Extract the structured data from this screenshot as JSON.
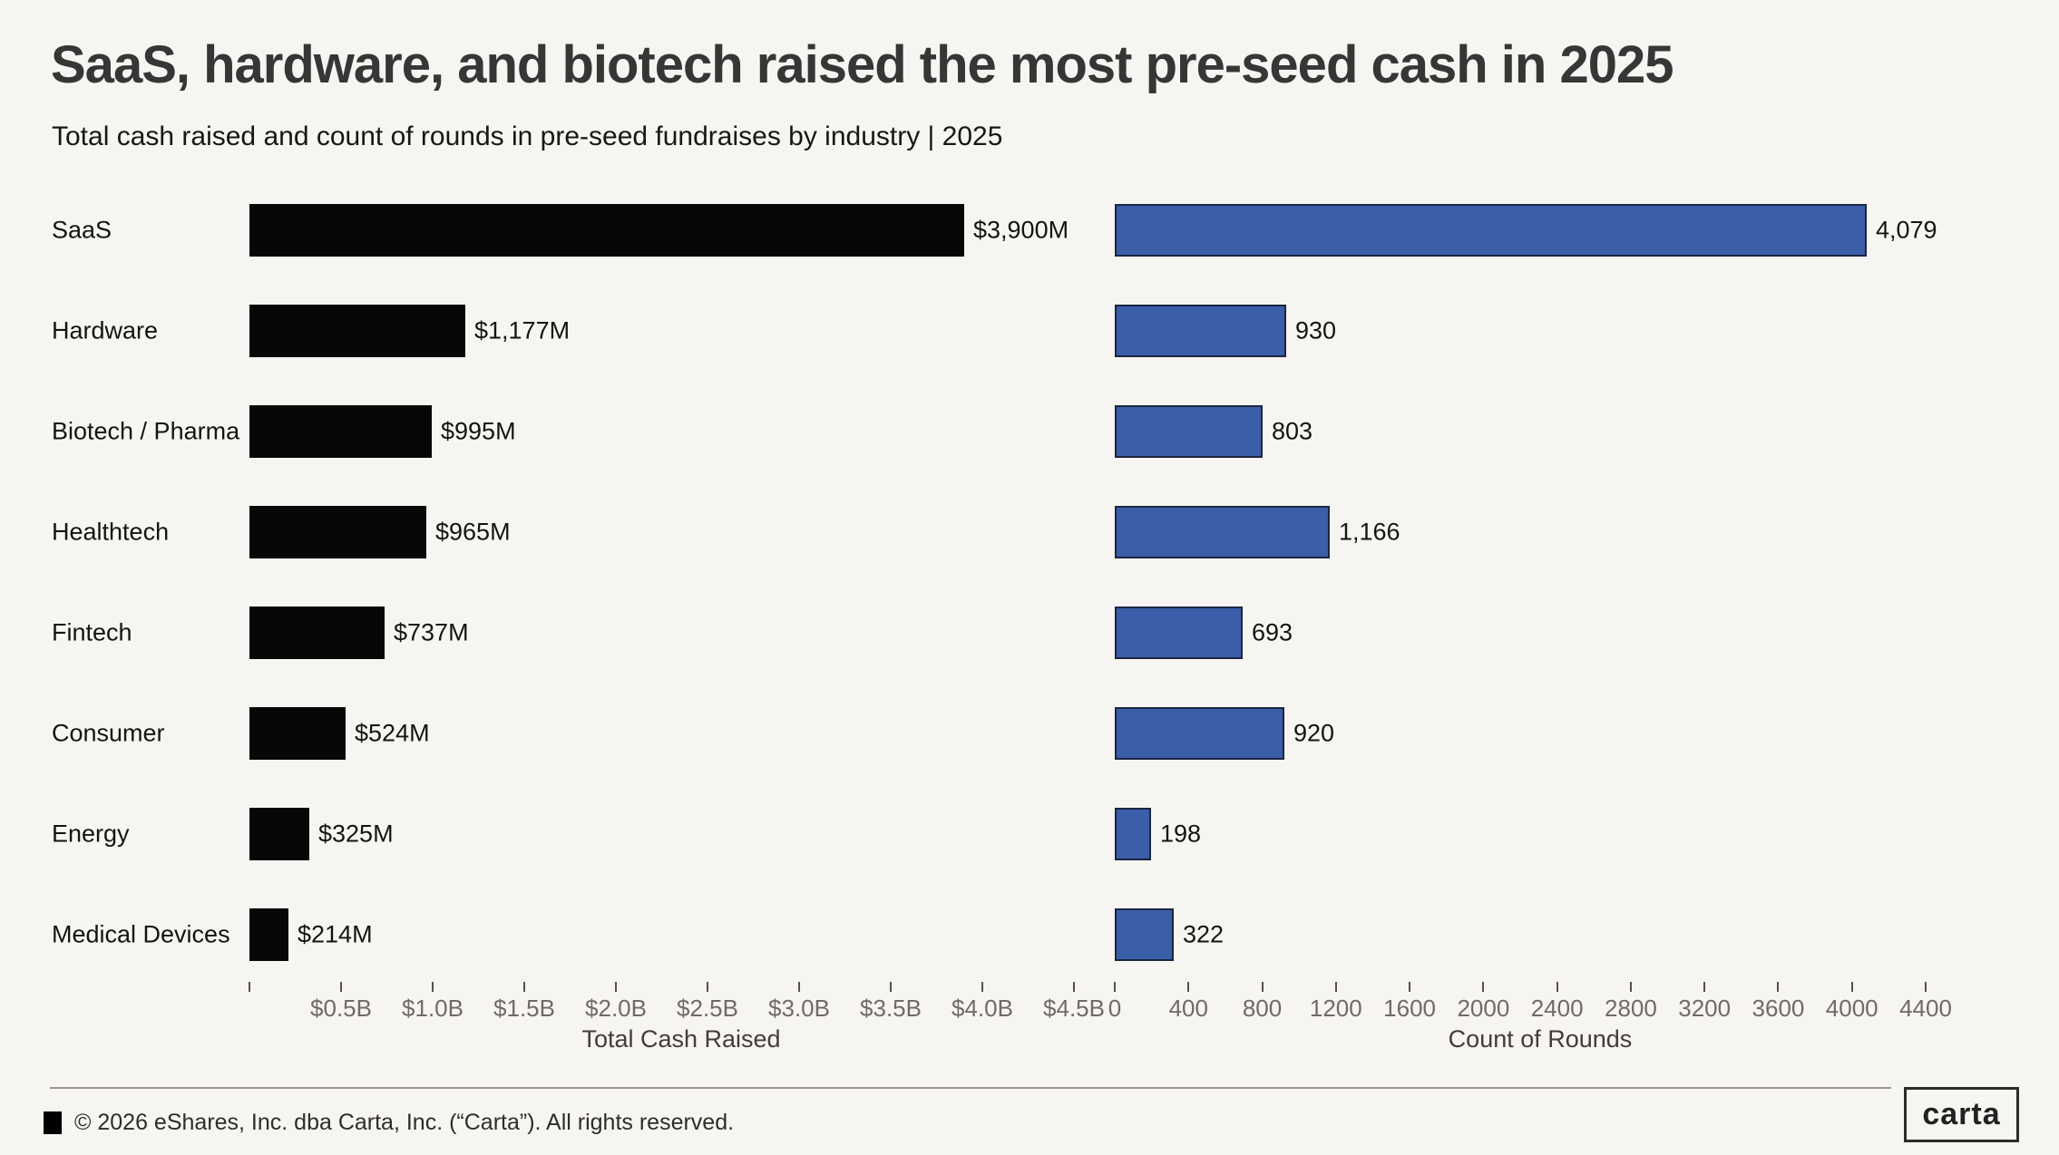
{
  "header": {
    "title": "SaaS, hardware, and biotech raised the most pre-seed cash in 2025",
    "subtitle": "Total cash raised and count of rounds in pre-seed fundraises by industry | 2025"
  },
  "chart_data": [
    {
      "type": "bar",
      "orientation": "horizontal",
      "panel": "left",
      "categories": [
        "SaaS",
        "Hardware",
        "Biotech / Pharma",
        "Healthtech",
        "Fintech",
        "Consumer",
        "Energy",
        "Medical Devices"
      ],
      "values": [
        3900,
        1177,
        995,
        965,
        737,
        524,
        325,
        214
      ],
      "value_labels": [
        "$3,900M",
        "$1,177M",
        "$995M",
        "$965M",
        "$737M",
        "$524M",
        "$325M",
        "$214M"
      ],
      "unit": "USD millions",
      "xlabel": "Total Cash Raised",
      "xlim": [
        0,
        4500
      ],
      "ticks": [
        {
          "value": 0,
          "label": ""
        },
        {
          "value": 500,
          "label": "$0.5B"
        },
        {
          "value": 1000,
          "label": "$1.0B"
        },
        {
          "value": 1500,
          "label": "$1.5B"
        },
        {
          "value": 2000,
          "label": "$2.0B"
        },
        {
          "value": 2500,
          "label": "$2.5B"
        },
        {
          "value": 3000,
          "label": "$3.0B"
        },
        {
          "value": 3500,
          "label": "$3.5B"
        },
        {
          "value": 4000,
          "label": "$4.0B"
        },
        {
          "value": 4500,
          "label": "$4.5B"
        }
      ],
      "bar_color": "#070707",
      "bar_border_color": "#070707",
      "grid": false,
      "legend": false
    },
    {
      "type": "bar",
      "orientation": "horizontal",
      "panel": "right",
      "categories": [
        "SaaS",
        "Hardware",
        "Biotech / Pharma",
        "Healthtech",
        "Fintech",
        "Consumer",
        "Energy",
        "Medical Devices"
      ],
      "values": [
        4079,
        930,
        803,
        1166,
        693,
        920,
        198,
        322
      ],
      "value_labels": [
        "4,079",
        "930",
        "803",
        "1,166",
        "693",
        "920",
        "198",
        "322"
      ],
      "unit": "rounds",
      "xlabel": "Count of Rounds",
      "xlim": [
        0,
        4400
      ],
      "ticks": [
        {
          "value": 0,
          "label": "0"
        },
        {
          "value": 400,
          "label": "400"
        },
        {
          "value": 800,
          "label": "800"
        },
        {
          "value": 1200,
          "label": "1200"
        },
        {
          "value": 1600,
          "label": "1600"
        },
        {
          "value": 2000,
          "label": "2000"
        },
        {
          "value": 2400,
          "label": "2400"
        },
        {
          "value": 2800,
          "label": "2800"
        },
        {
          "value": 3200,
          "label": "3200"
        },
        {
          "value": 3600,
          "label": "3600"
        },
        {
          "value": 4000,
          "label": "4000"
        },
        {
          "value": 4400,
          "label": "4400"
        }
      ],
      "bar_color": "#3a5ea7",
      "bar_border_color": "#1b2542",
      "grid": false,
      "legend": false
    }
  ],
  "footer": {
    "copyright": "© 2026 eShares, Inc. dba Carta, Inc. (“Carta”). All rights reserved.",
    "logo_text": "carta",
    "square_icon": "carta-black-square"
  },
  "colors": {
    "background": "#f7f5f1",
    "title": "#363636",
    "text": "#141414",
    "tick_label": "#6f6b67",
    "axis_title": "#403d3a",
    "divider": "#9b9894",
    "bar_black": "#070707",
    "bar_blue": "#3a5ea7",
    "bar_blue_border": "#1b2542"
  }
}
